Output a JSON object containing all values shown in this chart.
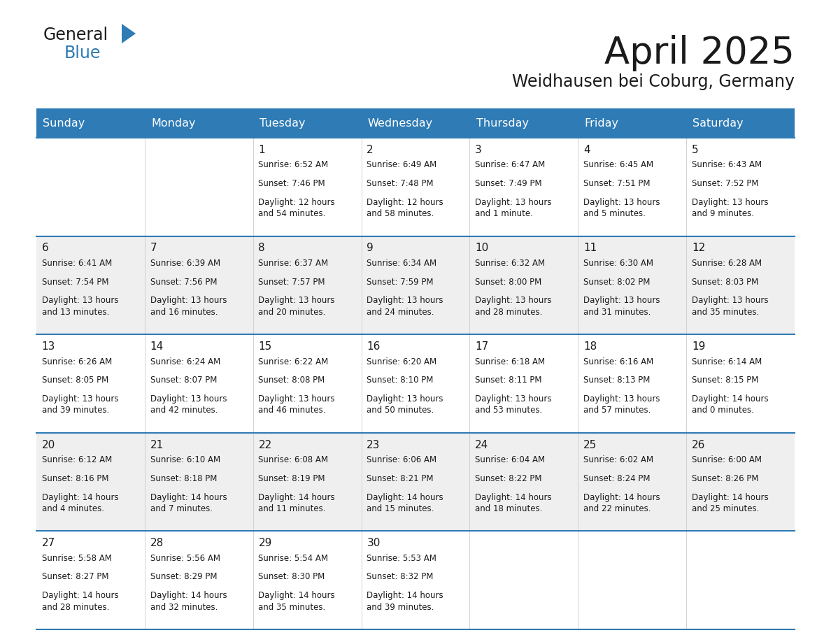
{
  "title": "April 2025",
  "subtitle": "Weidhausen bei Coburg, Germany",
  "header_bg": "#2E7BB5",
  "header_text": "#FFFFFF",
  "row_bg_light": "#EFEFEF",
  "row_bg_white": "#FFFFFF",
  "border_color": "#2E7BB5",
  "text_color": "#1a1a1a",
  "day_names": [
    "Sunday",
    "Monday",
    "Tuesday",
    "Wednesday",
    "Thursday",
    "Friday",
    "Saturday"
  ],
  "calendar": [
    [
      {
        "day": "",
        "sunrise": "",
        "sunset": "",
        "daylight": ""
      },
      {
        "day": "",
        "sunrise": "",
        "sunset": "",
        "daylight": ""
      },
      {
        "day": "1",
        "sunrise": "Sunrise: 6:52 AM",
        "sunset": "Sunset: 7:46 PM",
        "daylight": "Daylight: 12 hours\nand 54 minutes."
      },
      {
        "day": "2",
        "sunrise": "Sunrise: 6:49 AM",
        "sunset": "Sunset: 7:48 PM",
        "daylight": "Daylight: 12 hours\nand 58 minutes."
      },
      {
        "day": "3",
        "sunrise": "Sunrise: 6:47 AM",
        "sunset": "Sunset: 7:49 PM",
        "daylight": "Daylight: 13 hours\nand 1 minute."
      },
      {
        "day": "4",
        "sunrise": "Sunrise: 6:45 AM",
        "sunset": "Sunset: 7:51 PM",
        "daylight": "Daylight: 13 hours\nand 5 minutes."
      },
      {
        "day": "5",
        "sunrise": "Sunrise: 6:43 AM",
        "sunset": "Sunset: 7:52 PM",
        "daylight": "Daylight: 13 hours\nand 9 minutes."
      }
    ],
    [
      {
        "day": "6",
        "sunrise": "Sunrise: 6:41 AM",
        "sunset": "Sunset: 7:54 PM",
        "daylight": "Daylight: 13 hours\nand 13 minutes."
      },
      {
        "day": "7",
        "sunrise": "Sunrise: 6:39 AM",
        "sunset": "Sunset: 7:56 PM",
        "daylight": "Daylight: 13 hours\nand 16 minutes."
      },
      {
        "day": "8",
        "sunrise": "Sunrise: 6:37 AM",
        "sunset": "Sunset: 7:57 PM",
        "daylight": "Daylight: 13 hours\nand 20 minutes."
      },
      {
        "day": "9",
        "sunrise": "Sunrise: 6:34 AM",
        "sunset": "Sunset: 7:59 PM",
        "daylight": "Daylight: 13 hours\nand 24 minutes."
      },
      {
        "day": "10",
        "sunrise": "Sunrise: 6:32 AM",
        "sunset": "Sunset: 8:00 PM",
        "daylight": "Daylight: 13 hours\nand 28 minutes."
      },
      {
        "day": "11",
        "sunrise": "Sunrise: 6:30 AM",
        "sunset": "Sunset: 8:02 PM",
        "daylight": "Daylight: 13 hours\nand 31 minutes."
      },
      {
        "day": "12",
        "sunrise": "Sunrise: 6:28 AM",
        "sunset": "Sunset: 8:03 PM",
        "daylight": "Daylight: 13 hours\nand 35 minutes."
      }
    ],
    [
      {
        "day": "13",
        "sunrise": "Sunrise: 6:26 AM",
        "sunset": "Sunset: 8:05 PM",
        "daylight": "Daylight: 13 hours\nand 39 minutes."
      },
      {
        "day": "14",
        "sunrise": "Sunrise: 6:24 AM",
        "sunset": "Sunset: 8:07 PM",
        "daylight": "Daylight: 13 hours\nand 42 minutes."
      },
      {
        "day": "15",
        "sunrise": "Sunrise: 6:22 AM",
        "sunset": "Sunset: 8:08 PM",
        "daylight": "Daylight: 13 hours\nand 46 minutes."
      },
      {
        "day": "16",
        "sunrise": "Sunrise: 6:20 AM",
        "sunset": "Sunset: 8:10 PM",
        "daylight": "Daylight: 13 hours\nand 50 minutes."
      },
      {
        "day": "17",
        "sunrise": "Sunrise: 6:18 AM",
        "sunset": "Sunset: 8:11 PM",
        "daylight": "Daylight: 13 hours\nand 53 minutes."
      },
      {
        "day": "18",
        "sunrise": "Sunrise: 6:16 AM",
        "sunset": "Sunset: 8:13 PM",
        "daylight": "Daylight: 13 hours\nand 57 minutes."
      },
      {
        "day": "19",
        "sunrise": "Sunrise: 6:14 AM",
        "sunset": "Sunset: 8:15 PM",
        "daylight": "Daylight: 14 hours\nand 0 minutes."
      }
    ],
    [
      {
        "day": "20",
        "sunrise": "Sunrise: 6:12 AM",
        "sunset": "Sunset: 8:16 PM",
        "daylight": "Daylight: 14 hours\nand 4 minutes."
      },
      {
        "day": "21",
        "sunrise": "Sunrise: 6:10 AM",
        "sunset": "Sunset: 8:18 PM",
        "daylight": "Daylight: 14 hours\nand 7 minutes."
      },
      {
        "day": "22",
        "sunrise": "Sunrise: 6:08 AM",
        "sunset": "Sunset: 8:19 PM",
        "daylight": "Daylight: 14 hours\nand 11 minutes."
      },
      {
        "day": "23",
        "sunrise": "Sunrise: 6:06 AM",
        "sunset": "Sunset: 8:21 PM",
        "daylight": "Daylight: 14 hours\nand 15 minutes."
      },
      {
        "day": "24",
        "sunrise": "Sunrise: 6:04 AM",
        "sunset": "Sunset: 8:22 PM",
        "daylight": "Daylight: 14 hours\nand 18 minutes."
      },
      {
        "day": "25",
        "sunrise": "Sunrise: 6:02 AM",
        "sunset": "Sunset: 8:24 PM",
        "daylight": "Daylight: 14 hours\nand 22 minutes."
      },
      {
        "day": "26",
        "sunrise": "Sunrise: 6:00 AM",
        "sunset": "Sunset: 8:26 PM",
        "daylight": "Daylight: 14 hours\nand 25 minutes."
      }
    ],
    [
      {
        "day": "27",
        "sunrise": "Sunrise: 5:58 AM",
        "sunset": "Sunset: 8:27 PM",
        "daylight": "Daylight: 14 hours\nand 28 minutes."
      },
      {
        "day": "28",
        "sunrise": "Sunrise: 5:56 AM",
        "sunset": "Sunset: 8:29 PM",
        "daylight": "Daylight: 14 hours\nand 32 minutes."
      },
      {
        "day": "29",
        "sunrise": "Sunrise: 5:54 AM",
        "sunset": "Sunset: 8:30 PM",
        "daylight": "Daylight: 14 hours\nand 35 minutes."
      },
      {
        "day": "30",
        "sunrise": "Sunrise: 5:53 AM",
        "sunset": "Sunset: 8:32 PM",
        "daylight": "Daylight: 14 hours\nand 39 minutes."
      },
      {
        "day": "",
        "sunrise": "",
        "sunset": "",
        "daylight": ""
      },
      {
        "day": "",
        "sunrise": "",
        "sunset": "",
        "daylight": ""
      },
      {
        "day": "",
        "sunrise": "",
        "sunset": "",
        "daylight": ""
      }
    ]
  ],
  "logo_general_color": "#1a1a1a",
  "logo_blue_color": "#2E7BB5",
  "logo_triangle_color": "#2E7BB5"
}
